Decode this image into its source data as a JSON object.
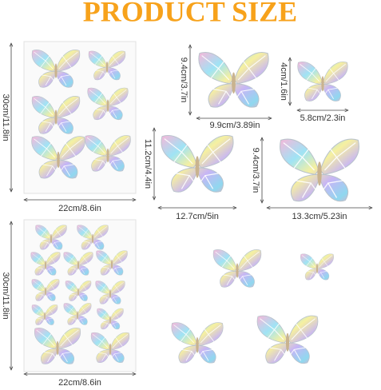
{
  "header": {
    "title": "PRODUCT SIZE"
  },
  "sheets": [
    {
      "height": "30cm/11.8in",
      "width": "22cm/8.6in"
    },
    {
      "height": "30cm/11.8in",
      "width": "22cm/8.6in"
    }
  ],
  "pieces": [
    {
      "height": "9.4cm/3.7in",
      "width": "9.9cm/3.89in"
    },
    {
      "height": "4cm/1.6in",
      "width": "5.8cm/2.3in"
    },
    {
      "height": "11.2cm/4.4in",
      "width": "12.7cm/5in"
    },
    {
      "height": "9.4cm/3.7in",
      "width": "13.3cm/5.23in"
    }
  ]
}
